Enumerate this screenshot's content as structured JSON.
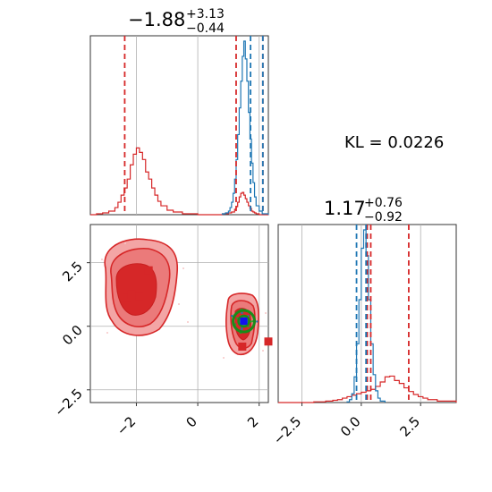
{
  "chart_data": [
    {
      "type": "histogram",
      "panel": "marginal-x",
      "title": {
        "value": "−1.88",
        "upper": "+3.13",
        "lower": "−0.44"
      },
      "xlim": [
        -3.5,
        2.3
      ],
      "grid": true,
      "vlines_red": [
        -2.38,
        1.25,
        2.12
      ],
      "vlines_blue": [
        1.72,
        2.12
      ],
      "series": [
        {
          "color": "#d62728",
          "x": [
            -3.5,
            -3.3,
            -3.1,
            -2.9,
            -2.7,
            -2.6,
            -2.5,
            -2.4,
            -2.3,
            -2.2,
            -2.1,
            -2.0,
            -1.9,
            -1.8,
            -1.7,
            -1.6,
            -1.5,
            -1.4,
            -1.3,
            -1.2,
            -1.0,
            -0.8,
            -0.5,
            0.0,
            0.5,
            0.8,
            1.0,
            1.1,
            1.2,
            1.25,
            1.3,
            1.35,
            1.4,
            1.45,
            1.5,
            1.55,
            1.6,
            1.65,
            1.7,
            1.75,
            1.8,
            1.85,
            1.9,
            2.0,
            2.3
          ],
          "values": [
            0,
            1,
            2,
            4,
            8,
            14,
            22,
            30,
            40,
            56,
            68,
            75,
            70,
            62,
            48,
            40,
            30,
            22,
            15,
            10,
            5,
            3,
            1,
            0,
            0,
            1,
            2,
            3,
            6,
            9,
            14,
            20,
            24,
            25,
            22,
            18,
            14,
            10,
            7,
            4,
            3,
            2,
            1,
            0,
            0
          ]
        },
        {
          "color": "#1f77b4",
          "x": [
            0.8,
            0.9,
            1.0,
            1.05,
            1.1,
            1.15,
            1.2,
            1.25,
            1.3,
            1.35,
            1.4,
            1.45,
            1.5,
            1.55,
            1.6,
            1.65,
            1.7,
            1.75,
            1.8,
            1.85,
            1.9,
            2.0,
            2.1,
            2.3
          ],
          "values": [
            1,
            2,
            4,
            8,
            14,
            24,
            40,
            62,
            90,
            120,
            150,
            178,
            195,
            175,
            150,
            115,
            85,
            58,
            36,
            20,
            10,
            4,
            1,
            0
          ]
        }
      ]
    },
    {
      "type": "contour",
      "panel": "joint",
      "xlim": [
        -3.5,
        2.3
      ],
      "ylim": [
        -3.0,
        4.0
      ],
      "xticks": [
        "−2",
        "0",
        "2"
      ],
      "yticks": [
        "−2.5",
        "0.0",
        "2.5"
      ],
      "grid": true,
      "red_levels": [
        "outer",
        "mid",
        "core"
      ],
      "markers": [
        {
          "color": "#d62728",
          "x": -1.6,
          "y": 2.2
        },
        {
          "color": "#d62728",
          "x": -2.3,
          "y": 1.1
        },
        {
          "color": "#d62728",
          "x": -2.15,
          "y": 1.25
        },
        {
          "color": "#d62728",
          "x": -1.9,
          "y": 1.2
        },
        {
          "color": "#d62728",
          "x": 1.45,
          "y": -0.8
        },
        {
          "color": "#d62728",
          "x": 2.3,
          "y": -0.6
        },
        {
          "color": "#1f77b4",
          "x": 1.5,
          "y": 0.2
        }
      ],
      "green_ring": {
        "x": 1.5,
        "y": 0.2
      }
    },
    {
      "type": "histogram",
      "panel": "marginal-y",
      "title": {
        "value": "1.17",
        "upper": "+0.76",
        "lower": "−0.92"
      },
      "xlim": [
        -3.5,
        4.0
      ],
      "xticks": [
        "−2.5",
        "0.0",
        "2.5"
      ],
      "grid": true,
      "vlines_red": [
        0.25,
        0.4,
        2.0
      ],
      "vlines_blue": [
        -0.2,
        0.2
      ],
      "series": [
        {
          "color": "#d62728",
          "x": [
            -3.5,
            -2.0,
            -1.5,
            -1.2,
            -1.0,
            -0.8,
            -0.6,
            -0.4,
            -0.2,
            0.0,
            0.2,
            0.4,
            0.6,
            0.8,
            1.0,
            1.2,
            1.4,
            1.6,
            1.8,
            2.0,
            2.2,
            2.4,
            2.6,
            2.8,
            3.2,
            4.0
          ],
          "values": [
            0,
            1,
            2,
            3,
            4,
            6,
            8,
            10,
            12,
            14,
            16,
            18,
            22,
            28,
            35,
            36,
            30,
            26,
            20,
            15,
            11,
            8,
            6,
            4,
            2,
            0
          ]
        },
        {
          "color": "#1f77b4",
          "x": [
            -0.6,
            -0.5,
            -0.4,
            -0.3,
            -0.2,
            -0.1,
            0.0,
            0.1,
            0.2,
            0.3,
            0.4,
            0.5,
            0.6,
            0.7,
            0.8,
            1.0
          ],
          "values": [
            1,
            4,
            12,
            35,
            80,
            140,
            210,
            235,
            200,
            140,
            80,
            38,
            16,
            6,
            2,
            0
          ]
        }
      ]
    }
  ],
  "kl_label": "KL = 0.0226"
}
